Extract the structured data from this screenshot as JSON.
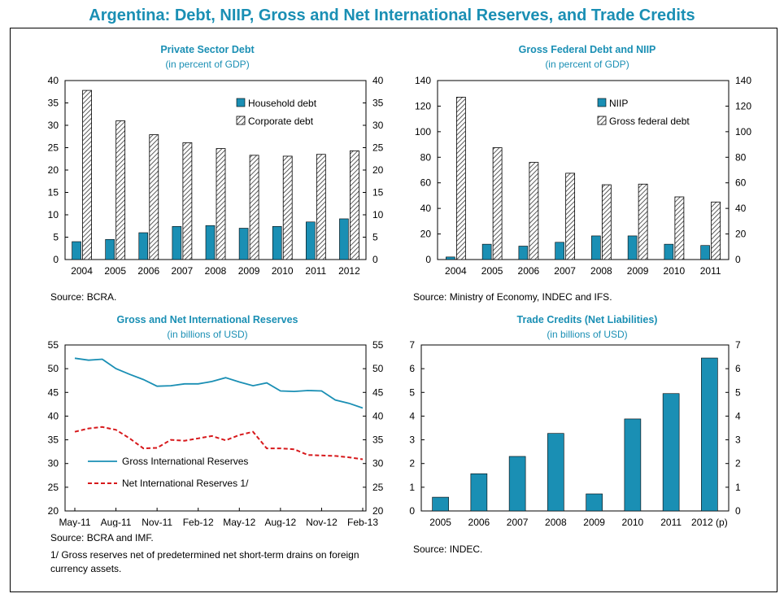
{
  "title": "Argentina: Debt, NIIP, Gross and Net International Reserves, and Trade Credits",
  "colors": {
    "teal": "#1a8fb4",
    "red": "#d7191c",
    "title": "#1a8fb4"
  },
  "panels": {
    "private_debt": {
      "title": "Private Sector Debt",
      "subtitle": "(in percent of GDP)",
      "source": "Source: BCRA."
    },
    "federal_debt": {
      "title": "Gross Federal  Debt and NIIP",
      "subtitle": "(in percent of GDP)",
      "source": "Source: Ministry of Economy, INDEC and IFS."
    },
    "reserves": {
      "title": "Gross and Net International Reserves",
      "subtitle": "(in billions of USD)",
      "source": "Source: BCRA and IMF.",
      "note": "1/ Gross reserves net of predetermined net short-term drains on foreign currency assets."
    },
    "trade": {
      "title": "Trade Credits  (Net Liabilities)",
      "subtitle": "(in billions of USD)",
      "source": "Source: INDEC."
    }
  },
  "chart_data": [
    {
      "id": "private_debt",
      "type": "bar",
      "categories": [
        "2004",
        "2005",
        "2006",
        "2007",
        "2008",
        "2009",
        "2010",
        "2011",
        "2012"
      ],
      "series": [
        {
          "name": "Household debt",
          "values": [
            4.0,
            4.5,
            6.0,
            7.4,
            7.6,
            7.0,
            7.4,
            8.4,
            9.1
          ]
        },
        {
          "name": "Corporate debt",
          "values": [
            37.8,
            31.0,
            27.9,
            26.1,
            24.8,
            23.3,
            23.1,
            23.5,
            24.3
          ]
        }
      ],
      "ylim": [
        0,
        40
      ],
      "yticks": [
        0,
        5,
        10,
        15,
        20,
        25,
        30,
        35,
        40
      ],
      "legend": "top-right"
    },
    {
      "id": "federal_debt",
      "type": "bar",
      "categories": [
        "2004",
        "2005",
        "2006",
        "2007",
        "2008",
        "2009",
        "2010",
        "2011"
      ],
      "series": [
        {
          "name": "NIIP",
          "values": [
            2.0,
            12.0,
            10.5,
            13.5,
            18.5,
            18.5,
            12.0,
            11.0
          ]
        },
        {
          "name": "Gross federal debt",
          "values": [
            127.0,
            87.5,
            76.0,
            67.5,
            58.5,
            59.0,
            49.0,
            45.0
          ]
        }
      ],
      "ylim": [
        0,
        140
      ],
      "yticks": [
        0,
        20,
        40,
        60,
        80,
        100,
        120,
        140
      ],
      "legend": "top-right"
    },
    {
      "id": "reserves",
      "type": "line",
      "x_ticks": [
        "May-11",
        "Aug-11",
        "Nov-11",
        "Feb-12",
        "May-12",
        "Aug-12",
        "Nov-12",
        "Feb-13"
      ],
      "series": [
        {
          "name": "Gross International Reserves",
          "values": [
            52.2,
            51.8,
            52.0,
            50.0,
            48.8,
            47.7,
            46.3,
            46.4,
            46.8,
            46.8,
            47.3,
            48.1,
            47.2,
            46.4,
            47.0,
            45.3,
            45.2,
            45.4,
            45.3,
            43.4,
            42.7,
            41.7
          ]
        },
        {
          "name": "Net International Reserves 1/",
          "values": [
            36.7,
            37.4,
            37.7,
            37.1,
            35.3,
            33.2,
            33.3,
            35.0,
            34.8,
            35.3,
            35.8,
            34.9,
            36.0,
            36.7,
            33.2,
            33.2,
            33.0,
            31.8,
            31.7,
            31.6,
            31.3,
            30.9
          ]
        }
      ],
      "ylim": [
        20,
        55
      ],
      "yticks": [
        20,
        25,
        30,
        35,
        40,
        45,
        50,
        55
      ],
      "legend": "bottom-left"
    },
    {
      "id": "trade",
      "type": "bar",
      "categories": [
        "2005",
        "2006",
        "2007",
        "2008",
        "2009",
        "2010",
        "2011",
        "2012 (p)"
      ],
      "series": [
        {
          "name": "Trade credits",
          "values": [
            0.58,
            1.57,
            2.3,
            3.27,
            0.72,
            3.88,
            4.95,
            6.45
          ]
        }
      ],
      "ylim": [
        0,
        7
      ],
      "yticks": [
        0,
        1,
        2,
        3,
        4,
        5,
        6,
        7
      ]
    }
  ]
}
